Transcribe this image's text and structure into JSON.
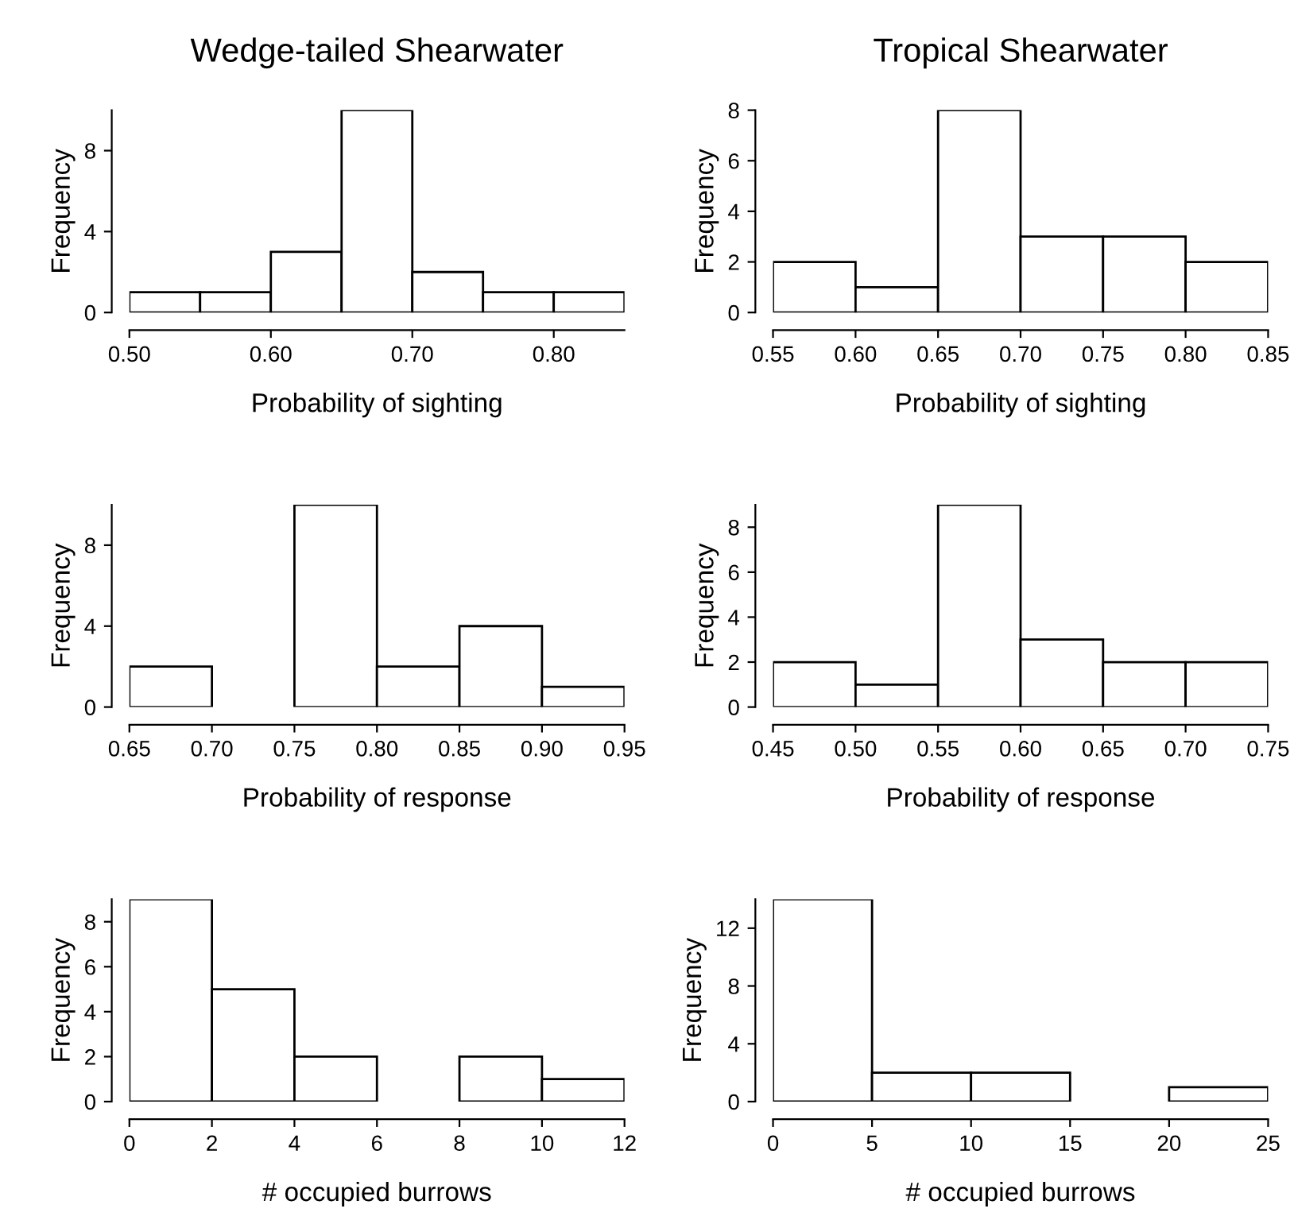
{
  "chart_data": [
    {
      "type": "histogram",
      "title": "Wedge-tailed Shearwater",
      "xlabel": "Probability of sighting",
      "ylabel": "Frequency",
      "color": "#ffffff",
      "bins": [
        0.5,
        0.55,
        0.6,
        0.65,
        0.7,
        0.75,
        0.8,
        0.85
      ],
      "values": [
        1,
        1,
        3,
        10,
        2,
        1,
        1
      ],
      "xlim": [
        0.5,
        0.85
      ],
      "xticks": [
        {
          "value": 0.5,
          "label": "0.50"
        },
        {
          "value": 0.6,
          "label": "0.60"
        },
        {
          "value": 0.7,
          "label": "0.70"
        },
        {
          "value": 0.8,
          "label": "0.80"
        }
      ],
      "ylim": [
        0,
        10
      ],
      "yticks": [
        0,
        4,
        8
      ]
    },
    {
      "type": "histogram",
      "title": "Tropical Shearwater",
      "xlabel": "Probability of sighting",
      "ylabel": "Frequency",
      "color": "#ffffff",
      "bins": [
        0.55,
        0.6,
        0.65,
        0.7,
        0.75,
        0.8,
        0.85
      ],
      "values": [
        2,
        1,
        8,
        3,
        3,
        2
      ],
      "xlim": [
        0.55,
        0.85
      ],
      "xticks": [
        0.55,
        {
          "value": 0.6,
          "label": "0.60"
        },
        0.65,
        {
          "value": 0.7,
          "label": "0.70"
        },
        0.75,
        {
          "value": 0.8,
          "label": "0.80"
        },
        0.85
      ],
      "ylim": [
        0,
        8
      ],
      "yticks": [
        0,
        2,
        4,
        6,
        8
      ]
    },
    {
      "type": "histogram",
      "xlabel": "Probability of response",
      "ylabel": "Frequency",
      "color": "#ffffff",
      "bins": [
        0.65,
        0.7,
        0.75,
        0.8,
        0.85,
        0.9,
        0.95
      ],
      "values": [
        2,
        0,
        10,
        2,
        4,
        1
      ],
      "xlim": [
        0.65,
        0.95
      ],
      "xticks": [
        0.65,
        {
          "value": 0.7,
          "label": "0.70"
        },
        0.75,
        {
          "value": 0.8,
          "label": "0.80"
        },
        0.85,
        {
          "value": 0.9,
          "label": "0.90"
        },
        0.95
      ],
      "ylim": [
        0,
        10
      ],
      "yticks": [
        0,
        4,
        8
      ]
    },
    {
      "type": "histogram",
      "xlabel": "Probability of response",
      "ylabel": "Frequency",
      "color": "#ffffff",
      "bins": [
        0.45,
        0.5,
        0.55,
        0.6,
        0.65,
        0.7,
        0.75
      ],
      "values": [
        2,
        1,
        9,
        3,
        2,
        2
      ],
      "xlim": [
        0.45,
        0.75
      ],
      "xticks": [
        0.45,
        {
          "value": 0.5,
          "label": "0.50"
        },
        0.55,
        {
          "value": 0.6,
          "label": "0.60"
        },
        0.65,
        {
          "value": 0.7,
          "label": "0.70"
        },
        0.75
      ],
      "ylim": [
        0,
        9
      ],
      "yticks": [
        0,
        2,
        4,
        6,
        8
      ]
    },
    {
      "type": "histogram",
      "xlabel": "# occupied burrows",
      "ylabel": "Frequency",
      "color": "#ffffff",
      "bins": [
        0,
        2,
        4,
        6,
        8,
        10,
        12
      ],
      "values": [
        9,
        5,
        2,
        0,
        2,
        1
      ],
      "xlim": [
        0,
        12
      ],
      "xticks": [
        0,
        2,
        4,
        6,
        8,
        10,
        12
      ],
      "ylim": [
        0,
        9
      ],
      "yticks": [
        0,
        2,
        4,
        6,
        8
      ]
    },
    {
      "type": "histogram",
      "xlabel": "# occupied burrows",
      "ylabel": "Frequency",
      "color": "#ffffff",
      "bins": [
        0,
        5,
        10,
        15,
        20,
        25
      ],
      "values": [
        14,
        2,
        2,
        0,
        1
      ],
      "xlim": [
        0,
        25
      ],
      "xticks": [
        0,
        5,
        10,
        15,
        20,
        25
      ],
      "ylim": [
        0,
        14
      ],
      "yticks": [
        0,
        4,
        8,
        12
      ]
    }
  ]
}
